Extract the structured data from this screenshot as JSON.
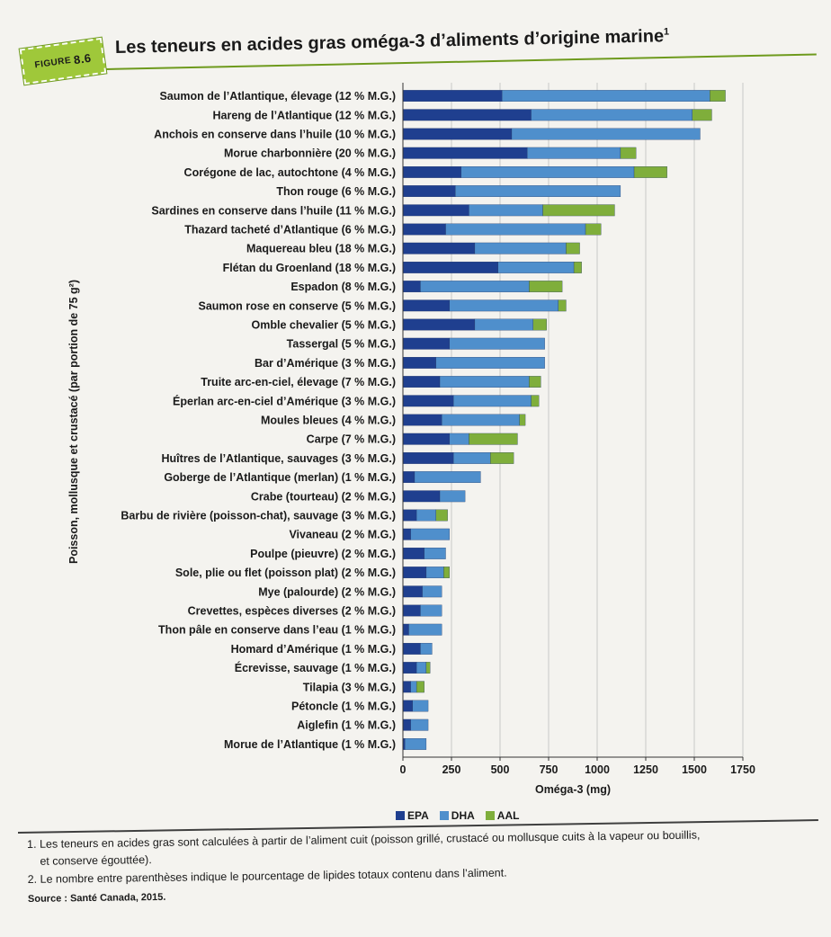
{
  "figure": {
    "badge_label": "FIGURE",
    "badge_number": "8.6",
    "title": "Les teneurs en acides gras oméga-3 d’aliments d’origine marine",
    "title_note": "1"
  },
  "colors": {
    "epa": "#1f3f8f",
    "dha": "#4f8fcc",
    "aal": "#7fae3b"
  },
  "chart_data": {
    "type": "bar",
    "orientation": "horizontal",
    "stacked": true,
    "title": "Les teneurs en acides gras oméga-3 d’aliments d’origine marine",
    "xlabel": "Oméga-3 (mg)",
    "ylabel": "Poisson, mollusque et crustacé (par portion de 75 g²)",
    "xlim": [
      0,
      1750
    ],
    "xticks": [
      0,
      250,
      500,
      750,
      1000,
      1250,
      1500,
      1750
    ],
    "categories": [
      "Saumon de l’Atlantique, élevage (12 % M.G.)",
      "Hareng de l’Atlantique (12 % M.G.)",
      "Anchois en conserve dans l’huile (10 % M.G.)",
      "Morue charbonnière (20 % M.G.)",
      "Corégone de lac, autochtone (4 % M.G.)",
      "Thon rouge (6 % M.G.)",
      "Sardines en conserve dans l’huile (11 % M.G.)",
      "Thazard tacheté d’Atlantique (6 % M.G.)",
      "Maquereau bleu (18 % M.G.)",
      "Flétan du Groenland (18 % M.G.)",
      "Espadon (8 % M.G.)",
      "Saumon rose en conserve (5 % M.G.)",
      "Omble chevalier (5 % M.G.)",
      "Tassergal (5 % M.G.)",
      "Bar d’Amérique (3 % M.G.)",
      "Truite arc-en-ciel, élevage (7 % M.G.)",
      "Éperlan arc-en-ciel d’Amérique (3 % M.G.)",
      "Moules bleues (4 % M.G.)",
      "Carpe (7 % M.G.)",
      "Huîtres de l’Atlantique, sauvages (3 % M.G.)",
      "Goberge de l’Atlantique (merlan) (1 % M.G.)",
      "Crabe (tourteau) (2 % M.G.)",
      "Barbu de rivière (poisson-chat), sauvage (3 % M.G.)",
      "Vivaneau (2 % M.G.)",
      "Poulpe (pieuvre) (2 % M.G.)",
      "Sole, plie ou flet (poisson plat) (2 % M.G.)",
      "Mye (palourde) (2 % M.G.)",
      "Crevettes, espèces diverses (2 % M.G.)",
      "Thon pâle en conserve dans l’eau (1 % M.G.)",
      "Homard d’Amérique (1 % M.G.)",
      "Écrevisse, sauvage (1 % M.G.)",
      "Tilapia (3 % M.G.)",
      "Pétoncle (1 % M.G.)",
      "Aiglefin (1 % M.G.)",
      "Morue de l’Atlantique (1 % M.G.)"
    ],
    "series": [
      {
        "name": "EPA",
        "color": "#1f3f8f",
        "values": [
          510,
          660,
          560,
          640,
          300,
          270,
          340,
          220,
          370,
          490,
          90,
          240,
          370,
          240,
          170,
          190,
          260,
          200,
          240,
          260,
          60,
          190,
          70,
          40,
          110,
          120,
          100,
          90,
          30,
          90,
          70,
          40,
          50,
          40,
          10
        ]
      },
      {
        "name": "DHA",
        "color": "#4f8fcc",
        "values": [
          1070,
          830,
          970,
          480,
          890,
          850,
          380,
          720,
          470,
          390,
          560,
          560,
          300,
          490,
          560,
          460,
          400,
          400,
          100,
          190,
          340,
          130,
          100,
          200,
          110,
          90,
          100,
          110,
          170,
          60,
          50,
          30,
          80,
          90,
          110
        ]
      },
      {
        "name": "AAL",
        "color": "#7fae3b",
        "values": [
          80,
          100,
          0,
          80,
          170,
          0,
          370,
          80,
          70,
          40,
          170,
          40,
          70,
          0,
          0,
          60,
          40,
          30,
          250,
          120,
          0,
          0,
          60,
          0,
          0,
          30,
          0,
          0,
          0,
          0,
          20,
          40,
          0,
          0,
          0
        ]
      }
    ]
  },
  "legend": {
    "items": [
      {
        "label": "EPA",
        "color": "#1f3f8f"
      },
      {
        "label": "DHA",
        "color": "#4f8fcc"
      },
      {
        "label": "AAL",
        "color": "#7fae3b"
      }
    ]
  },
  "notes": {
    "note1_line1": "1. Les teneurs en acides gras sont calculées à partir de l’aliment cuit (poisson grillé, crustacé ou mollusque cuits à la vapeur ou bouillis,",
    "note1_line2": "et conserve égouttée).",
    "note2": "2. Le nombre entre parenthèses indique le pourcentage de lipides totaux contenu dans l’aliment.",
    "source": "Source : Santé Canada, 2015."
  }
}
